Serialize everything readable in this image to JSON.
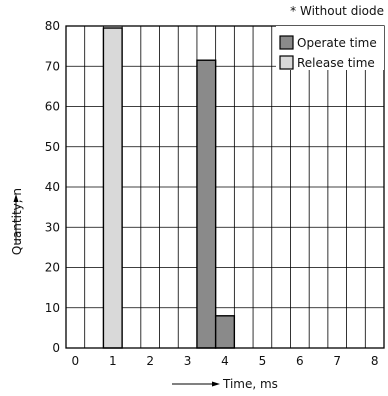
{
  "chart_data": {
    "type": "bar",
    "note": "* Without diode",
    "xlabel": "Time, ms",
    "ylabel": "Quantity, n",
    "xlim": [
      -0.25,
      8.25
    ],
    "ylim": [
      0,
      80
    ],
    "x_ticks": [
      0,
      1,
      2,
      3,
      4,
      5,
      6,
      7,
      8
    ],
    "y_ticks": [
      0,
      10,
      20,
      30,
      40,
      50,
      60,
      70,
      80
    ],
    "bin_width": 0.5,
    "grid": true,
    "legend_position": "top-right",
    "series": [
      {
        "name": "Operate time",
        "color": "#8a8a8a",
        "bars": [
          {
            "start": 3.25,
            "value": 71.5
          },
          {
            "start": 3.75,
            "value": 8
          }
        ]
      },
      {
        "name": "Release time",
        "color": "#d9d9d9",
        "bars": [
          {
            "start": 0.75,
            "value": 79.5
          }
        ]
      }
    ]
  }
}
